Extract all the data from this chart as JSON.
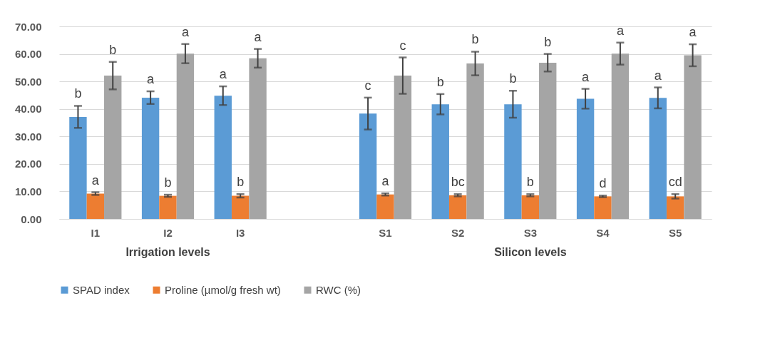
{
  "chart_data": {
    "type": "bar",
    "categories": [
      "I1",
      "I2",
      "I3",
      null,
      "S1",
      "S2",
      "S3",
      "S4",
      "S5"
    ],
    "series": [
      {
        "name": "SPAD index",
        "color": "#5b9bd5",
        "values": [
          37.1,
          44.1,
          44.8,
          null,
          38.3,
          41.7,
          41.7,
          43.7,
          44.0
        ],
        "errors": [
          4,
          2.3,
          3.4,
          null,
          5.8,
          3.7,
          4.9,
          3.6,
          3.8
        ],
        "value_labels": [
          "b",
          "a",
          "a",
          null,
          "c",
          "b",
          "b",
          "a",
          "a"
        ]
      },
      {
        "name": "Proline (µmol/g fresh wt)",
        "color": "#ed7d31",
        "values": [
          9.2,
          8.4,
          8.4,
          null,
          8.9,
          8.6,
          8.6,
          8.2,
          8.2
        ],
        "errors": [
          0.5,
          0.4,
          0.6,
          null,
          0.4,
          0.4,
          0.4,
          0.3,
          0.8
        ],
        "value_labels": [
          "a",
          "b",
          "b",
          null,
          "a",
          "bc",
          "b",
          "d",
          "cd"
        ]
      },
      {
        "name": "RWC (%)",
        "color": "#a5a5a5",
        "values": [
          52.1,
          60.1,
          58.4,
          null,
          52.1,
          56.5,
          56.8,
          60.1,
          59.5
        ],
        "errors": [
          5,
          3.5,
          3.4,
          null,
          6.6,
          4.3,
          3.2,
          4,
          4
        ],
        "value_labels": [
          "b",
          "a",
          "a",
          null,
          "c",
          "b",
          "b",
          "a",
          "a"
        ]
      }
    ],
    "annotations": [
      "Irrigation levels",
      "Silicon levels"
    ],
    "ylim": [
      0,
      70
    ],
    "yticks": [
      {
        "value": 0,
        "label": "0.00"
      },
      {
        "value": 10,
        "label": "10.00"
      },
      {
        "value": 20,
        "label": "20.00"
      },
      {
        "value": 30,
        "label": "30.00"
      },
      {
        "value": 40,
        "label": "40.00"
      },
      {
        "value": 50,
        "label": "50.00"
      },
      {
        "value": 60,
        "label": "60.00"
      },
      {
        "value": 70,
        "label": "70.00"
      }
    ],
    "grid": "y",
    "legend": "bottom"
  }
}
